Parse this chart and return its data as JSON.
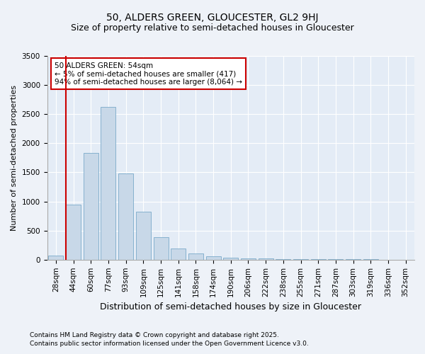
{
  "title": "50, ALDERS GREEN, GLOUCESTER, GL2 9HJ",
  "subtitle": "Size of property relative to semi-detached houses in Gloucester",
  "xlabel": "Distribution of semi-detached houses by size in Gloucester",
  "ylabel": "Number of semi-detached properties",
  "categories": [
    "28sqm",
    "44sqm",
    "60sqm",
    "77sqm",
    "93sqm",
    "109sqm",
    "125sqm",
    "141sqm",
    "158sqm",
    "174sqm",
    "190sqm",
    "206sqm",
    "222sqm",
    "238sqm",
    "255sqm",
    "271sqm",
    "287sqm",
    "303sqm",
    "319sqm",
    "336sqm",
    "352sqm"
  ],
  "values": [
    75,
    950,
    1830,
    2630,
    1480,
    820,
    385,
    195,
    110,
    60,
    40,
    25,
    18,
    12,
    10,
    8,
    8,
    5,
    5,
    3,
    2
  ],
  "bar_color": "#c8d8e8",
  "bar_edge_color": "#7aaaca",
  "red_line_index": 1,
  "annotation_title": "50 ALDERS GREEN: 54sqm",
  "annotation_line1": "← 5% of semi-detached houses are smaller (417)",
  "annotation_line2": "94% of semi-detached houses are larger (8,064) →",
  "ylim": [
    0,
    3500
  ],
  "yticks": [
    0,
    500,
    1000,
    1500,
    2000,
    2500,
    3000,
    3500
  ],
  "footer1": "Contains HM Land Registry data © Crown copyright and database right 2025.",
  "footer2": "Contains public sector information licensed under the Open Government Licence v3.0.",
  "bg_color": "#eef2f8",
  "plot_bg_color": "#e4ecf6",
  "title_fontsize": 10,
  "subtitle_fontsize": 9,
  "annotation_box_color": "#ffffff",
  "annotation_box_edge": "#cc0000",
  "red_line_color": "#cc0000",
  "grid_color": "#ffffff",
  "ylabel_fontsize": 8,
  "xlabel_fontsize": 9,
  "tick_fontsize": 7.5,
  "footer_fontsize": 6.5
}
